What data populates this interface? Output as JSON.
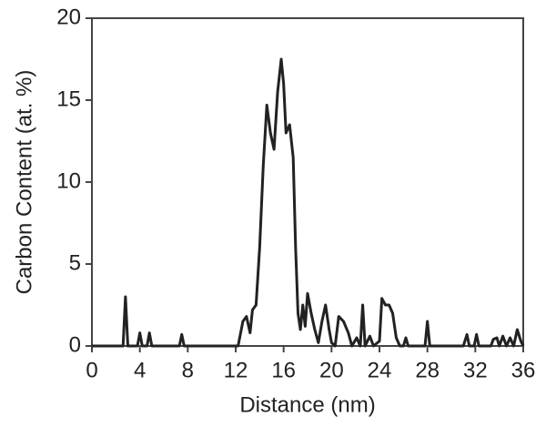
{
  "chart_data": {
    "type": "line",
    "xlabel": "Distance (nm)",
    "ylabel": "Carbon Content (at. %)",
    "x": [
      0,
      2.6,
      2.8,
      3.0,
      3.8,
      4.0,
      4.2,
      4.6,
      4.8,
      5.0,
      7.3,
      7.5,
      7.7,
      12.2,
      12.6,
      12.9,
      13.2,
      13.4,
      13.7,
      14.0,
      14.3,
      14.6,
      14.9,
      15.2,
      15.5,
      15.8,
      16.0,
      16.2,
      16.5,
      16.8,
      17.0,
      17.2,
      17.4,
      17.6,
      17.8,
      18.0,
      18.3,
      18.6,
      18.9,
      19.2,
      19.5,
      19.8,
      20.0,
      20.3,
      20.6,
      21.0,
      21.4,
      21.7,
      22.1,
      22.4,
      22.6,
      22.8,
      23.2,
      23.5,
      24.0,
      24.2,
      24.5,
      24.8,
      25.1,
      25.4,
      25.7,
      26.0,
      26.2,
      26.4,
      27.8,
      28.0,
      28.2,
      31.0,
      31.3,
      31.5,
      31.9,
      32.1,
      32.3,
      33.3,
      33.5,
      33.8,
      34.0,
      34.3,
      34.6,
      34.9,
      35.2,
      35.5,
      35.8,
      36
    ],
    "series": [
      {
        "name": "Carbon",
        "color": "#222222",
        "values": [
          0,
          0,
          3.0,
          0,
          0,
          0.8,
          0,
          0,
          0.8,
          0,
          0,
          0.7,
          0,
          0,
          1.5,
          1.8,
          0.8,
          2.2,
          2.5,
          6,
          11,
          14.7,
          13,
          12,
          15.5,
          17.5,
          16,
          13,
          13.5,
          11.5,
          6,
          2,
          1,
          2.5,
          1.2,
          3.2,
          2,
          1,
          0.2,
          1.5,
          2.5,
          1,
          0.2,
          0,
          1.8,
          1.5,
          0.8,
          0,
          0.5,
          0,
          2.5,
          0,
          0.6,
          0,
          0.3,
          2.9,
          2.5,
          2.5,
          2.0,
          0.5,
          0,
          0,
          0.5,
          0,
          0,
          1.5,
          0,
          0,
          0.7,
          0,
          0,
          0.7,
          0,
          0,
          0.4,
          0.5,
          0,
          0.6,
          0,
          0.5,
          0,
          1,
          0.3,
          0
        ]
      }
    ],
    "xlim": [
      0,
      36
    ],
    "xticks": [
      0,
      4,
      8,
      12,
      16,
      20,
      24,
      28,
      32,
      36
    ],
    "ylim": [
      0,
      20
    ],
    "yticks": [
      0,
      5,
      10,
      15,
      20
    ],
    "grid": false
  }
}
